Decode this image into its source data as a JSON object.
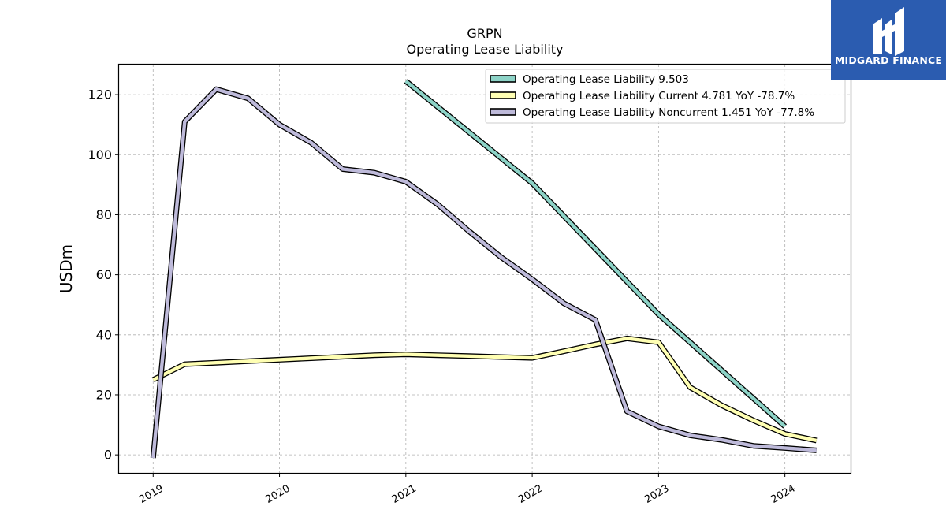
{
  "brand": {
    "name": "MIDGARD FINANCE",
    "color": "#2b5cb0"
  },
  "chart_data": {
    "type": "line",
    "title": "GRPN",
    "subtitle": "Operating Lease Liability",
    "ylabel": "USDm",
    "xlabel": "",
    "ylim": [
      -6,
      130
    ],
    "xlim": [
      2018.73,
      2024.52
    ],
    "yticks": [
      0,
      20,
      40,
      60,
      80,
      100,
      120
    ],
    "xticks": [
      2019,
      2020,
      2021,
      2022,
      2023,
      2024
    ],
    "grid": true,
    "legend_position": "top-right",
    "series": [
      {
        "name": "Operating Lease Liability",
        "legend_label": "Operating Lease Liability  9.503",
        "color": "#8dd3c7",
        "x": [
          2021.0,
          2022.0,
          2023.0,
          2024.0
        ],
        "y": [
          124.5,
          90.5,
          46.8,
          9.5
        ]
      },
      {
        "name": "Operating Lease Liability Current",
        "legend_label": "Operating Lease Liability Current  4.781 YoY -78.7%",
        "color": "#ffffb3",
        "x": [
          2019.0,
          2019.25,
          2019.5,
          2019.75,
          2020.0,
          2020.25,
          2020.5,
          2020.75,
          2021.0,
          2021.25,
          2021.5,
          2021.75,
          2022.0,
          2022.25,
          2022.5,
          2022.75,
          2023.0,
          2023.25,
          2023.5,
          2023.75,
          2024.0,
          2024.25
        ],
        "y": [
          25.0,
          30.2,
          30.7,
          31.2,
          31.7,
          32.2,
          32.7,
          33.2,
          33.5,
          33.2,
          32.9,
          32.6,
          32.3,
          34.5,
          36.8,
          38.8,
          37.5,
          22.5,
          16.5,
          11.5,
          7.0,
          4.8
        ]
      },
      {
        "name": "Operating Lease Liability Noncurrent",
        "legend_label": "Operating Lease Liability Noncurrent  1.451 YoY -77.8%",
        "color": "#bebada",
        "x": [
          2019.0,
          2019.25,
          2019.5,
          2019.75,
          2020.0,
          2020.25,
          2020.5,
          2020.75,
          2021.0,
          2021.25,
          2021.5,
          2021.75,
          2022.0,
          2022.25,
          2022.5,
          2022.75,
          2023.0,
          2023.25,
          2023.5,
          2023.75,
          2024.0,
          2024.25
        ],
        "y": [
          -1.0,
          111.0,
          121.8,
          118.8,
          110.0,
          104.0,
          95.2,
          94.0,
          91.0,
          83.5,
          74.5,
          66.0,
          58.5,
          50.5,
          45.0,
          14.5,
          9.5,
          6.5,
          5.0,
          3.0,
          2.3,
          1.5
        ]
      }
    ]
  }
}
